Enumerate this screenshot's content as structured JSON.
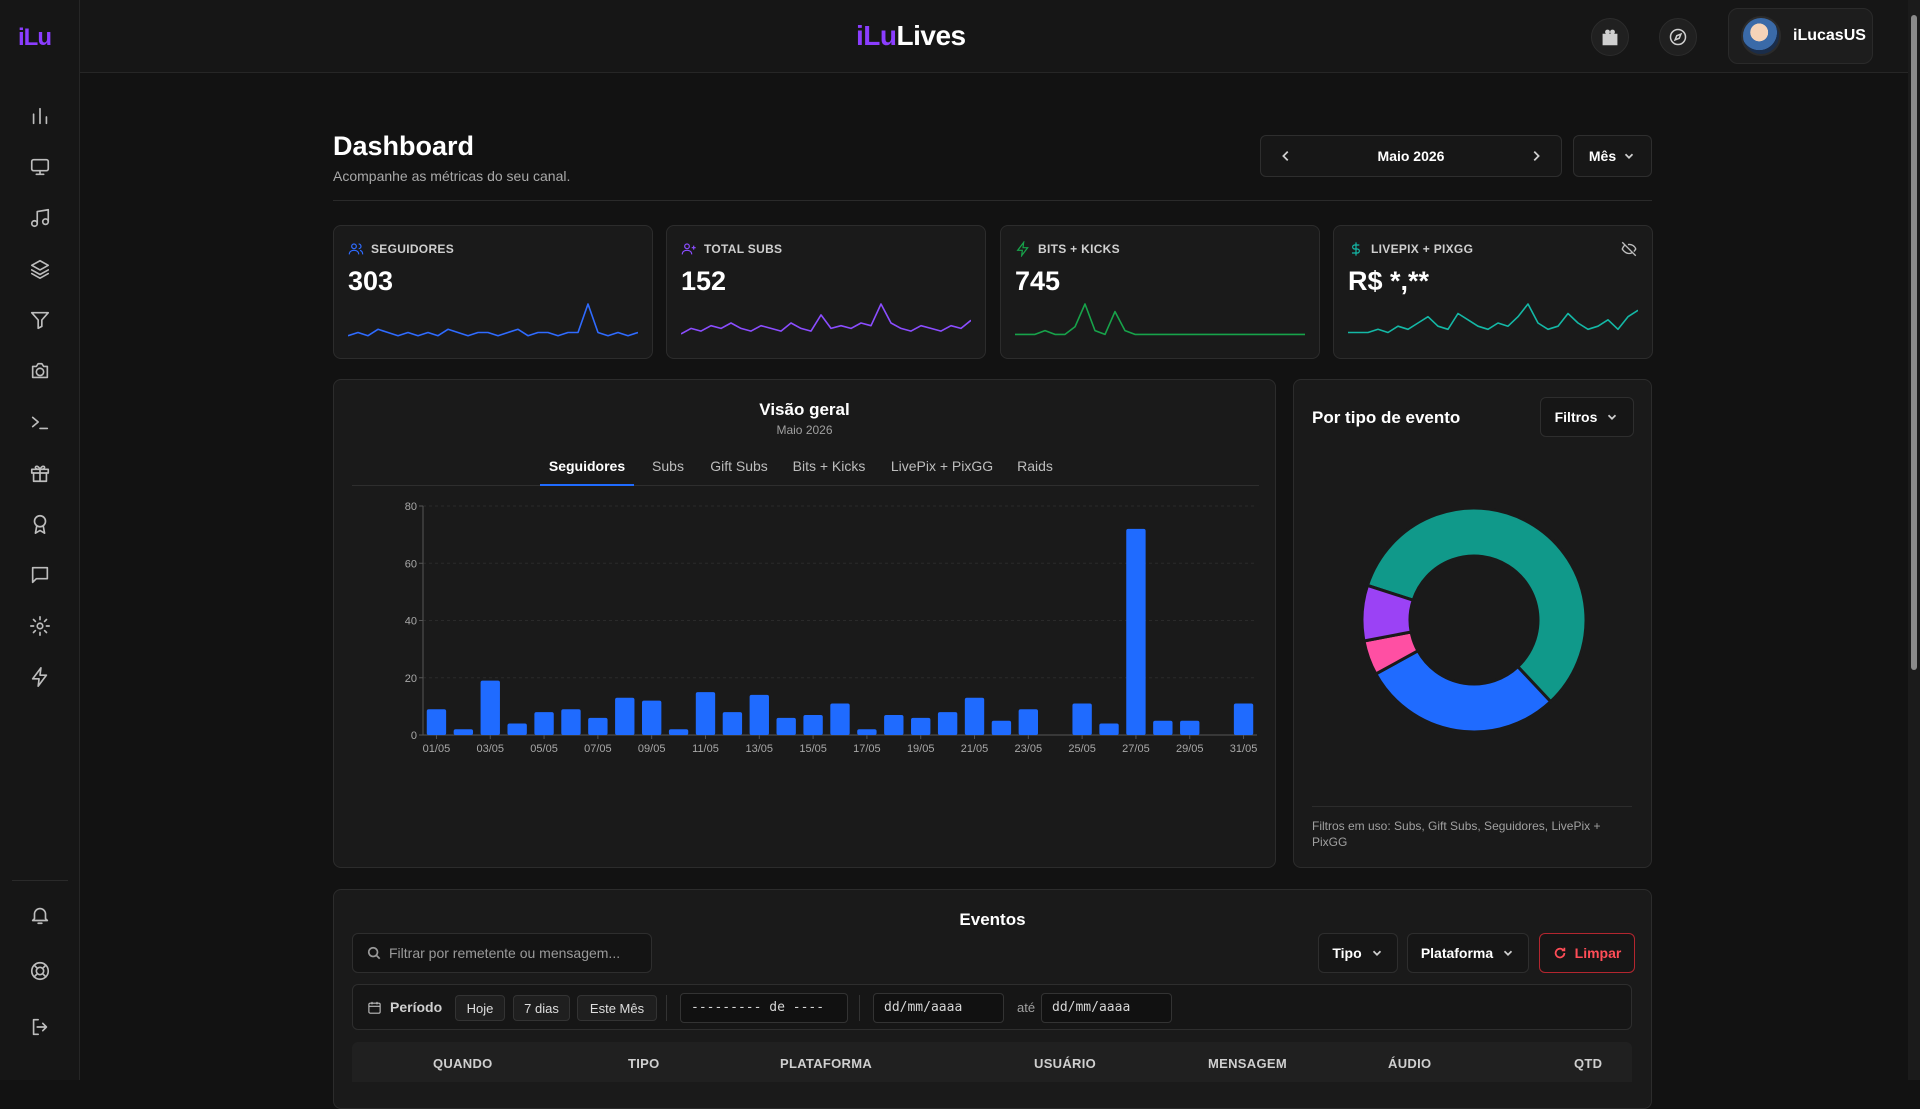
{
  "sidebar": {
    "logo": "iLu",
    "items": [
      {
        "icon": "bar-chart-icon"
      },
      {
        "icon": "monitor-icon"
      },
      {
        "icon": "music-note-icon"
      },
      {
        "icon": "layers-icon"
      },
      {
        "icon": "filter-icon"
      },
      {
        "icon": "camera-icon"
      },
      {
        "icon": "terminal-icon"
      },
      {
        "icon": "gift-icon"
      },
      {
        "icon": "award-icon"
      },
      {
        "icon": "chat-icon"
      },
      {
        "icon": "gear-icon"
      },
      {
        "icon": "lightning-icon"
      }
    ],
    "bottom": [
      {
        "icon": "bell-icon"
      },
      {
        "icon": "help-circle-icon"
      },
      {
        "icon": "logout-icon"
      }
    ]
  },
  "topbar": {
    "brand_ilu": "iLu",
    "brand_lives": "Lives",
    "user_name": "iLucasUS"
  },
  "header": {
    "title": "Dashboard",
    "subtitle": "Acompanhe as métricas do seu canal.",
    "month_label": "Maio 2026",
    "period_label": "Mês"
  },
  "cards": [
    {
      "label": "SEGUIDORES",
      "value": "303",
      "color": "#2f6bff"
    },
    {
      "label": "TOTAL SUBS",
      "value": "152",
      "color": "#8b4dff"
    },
    {
      "label": "BITS + KICKS",
      "value": "745",
      "color": "#17a34a"
    },
    {
      "label": "LIVEPIX + PIXGG",
      "value": "R$ *,**",
      "color": "#14b8a6"
    }
  ],
  "overview": {
    "title": "Visão geral",
    "subtitle": "Maio 2026",
    "tabs": [
      "Seguidores",
      "Subs",
      "Gift Subs",
      "Bits + Kicks",
      "LivePix + PixGG",
      "Raids"
    ],
    "active_tab": 0
  },
  "chart_data": [
    {
      "type": "bar",
      "categories": [
        "01/05",
        "02/05",
        "03/05",
        "04/05",
        "05/05",
        "06/05",
        "07/05",
        "08/05",
        "09/05",
        "10/05",
        "11/05",
        "12/05",
        "13/05",
        "14/05",
        "15/05",
        "16/05",
        "17/05",
        "18/05",
        "19/05",
        "20/05",
        "21/05",
        "22/05",
        "23/05",
        "24/05",
        "25/05",
        "26/05",
        "27/05",
        "28/05",
        "29/05",
        "30/05",
        "31/05"
      ],
      "tick_labels": [
        "01/05",
        "03/05",
        "05/05",
        "07/05",
        "09/05",
        "11/05",
        "13/05",
        "15/05",
        "17/05",
        "19/05",
        "21/05",
        "23/05",
        "25/05",
        "27/05",
        "29/05",
        "31/05"
      ],
      "values": [
        9,
        2,
        19,
        4,
        8,
        9,
        6,
        13,
        12,
        2,
        15,
        8,
        14,
        6,
        7,
        11,
        2,
        7,
        6,
        8,
        13,
        5,
        9,
        0,
        11,
        4,
        72,
        5,
        5,
        0,
        11
      ],
      "ylim": [
        0,
        80
      ],
      "yticks": [
        0,
        20,
        40,
        60,
        80
      ],
      "color": "#1f6bff",
      "grid": true
    },
    {
      "type": "pie",
      "title": "Por tipo de evento",
      "donut": true,
      "slices": [
        {
          "value": 58,
          "color": "#10998a"
        },
        {
          "value": 29,
          "color": "#1f6bff"
        },
        {
          "value": 5,
          "color": "#ff4fa3"
        },
        {
          "value": 8,
          "color": "#9b42f5"
        }
      ]
    }
  ],
  "sparklines": {
    "seguidores": [
      2,
      3,
      2,
      4,
      3,
      2,
      3,
      2,
      3,
      2,
      4,
      3,
      2,
      3,
      3,
      2,
      3,
      4,
      2,
      3,
      3,
      2,
      3,
      3,
      12,
      3,
      2,
      3,
      2,
      3
    ],
    "subs": [
      3,
      5,
      4,
      6,
      5,
      7,
      5,
      4,
      6,
      5,
      4,
      7,
      5,
      4,
      10,
      5,
      6,
      5,
      7,
      6,
      14,
      7,
      5,
      4,
      6,
      5,
      4,
      6,
      5,
      8
    ],
    "bits": [
      2,
      2,
      2,
      3,
      2,
      2,
      4,
      10,
      3,
      2,
      8,
      3,
      2,
      2,
      2,
      2,
      2,
      2,
      2,
      2,
      2,
      2,
      2,
      2,
      2,
      2,
      2,
      2,
      2,
      2
    ],
    "livepix": [
      3,
      3,
      3,
      4,
      3,
      5,
      4,
      6,
      8,
      5,
      4,
      9,
      7,
      5,
      4,
      6,
      5,
      8,
      12,
      6,
      4,
      5,
      9,
      6,
      4,
      5,
      7,
      4,
      8,
      10
    ]
  },
  "event_type_panel": {
    "title": "Por tipo de evento",
    "filter_label": "Filtros",
    "footer": "Filtros em uso: Subs, Gift Subs, Seguidores, LivePix + PixGG"
  },
  "events": {
    "title": "Eventos",
    "search_placeholder": "Filtrar por remetente ou mensagem...",
    "type_label": "Tipo",
    "platform_label": "Plataforma",
    "clear_label": "Limpar",
    "period_label": "Período",
    "quick": [
      "Hoje",
      "7 dias",
      "Este Mês"
    ],
    "month_input": "--------- de ----",
    "date_from": "dd/mm/aaaa",
    "until_label": "até",
    "date_to": "dd/mm/aaaa",
    "columns": [
      "QUANDO",
      "TIPO",
      "PLATAFORMA",
      "USUÁRIO",
      "MENSAGEM",
      "ÁUDIO",
      "QTD"
    ]
  }
}
